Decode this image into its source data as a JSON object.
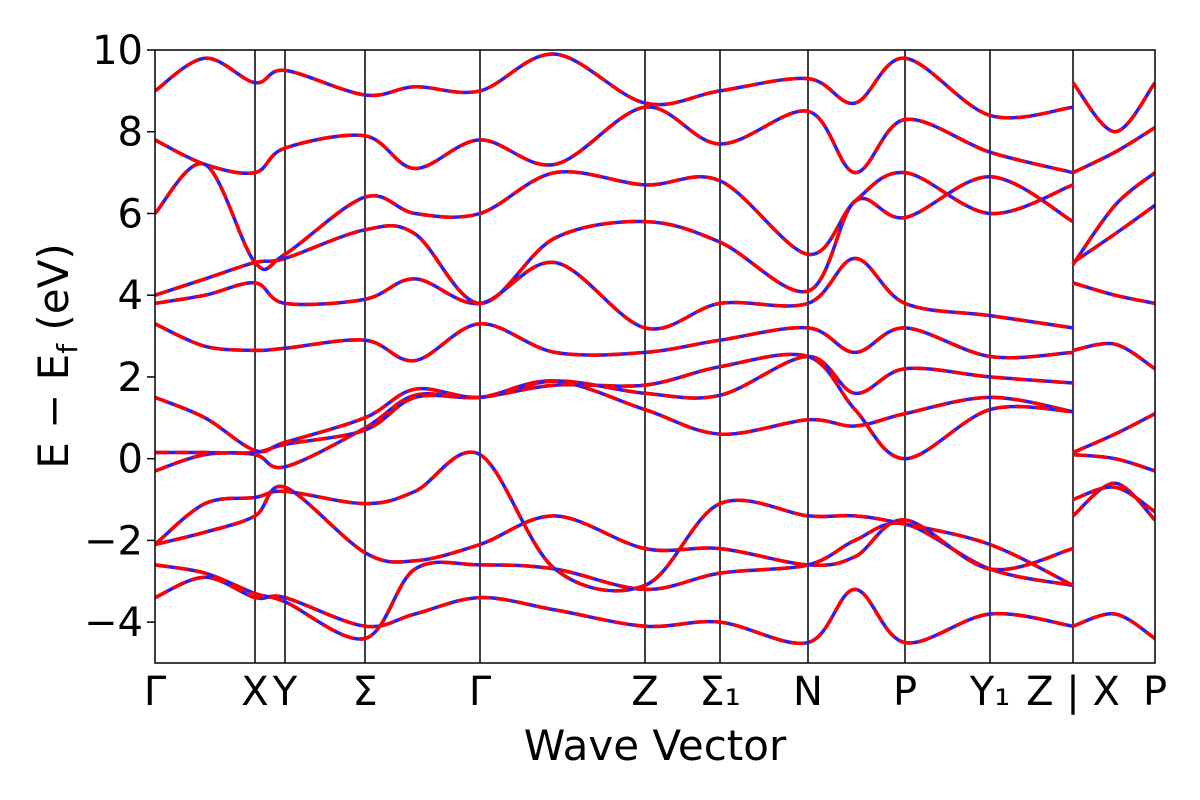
{
  "chart_data": {
    "type": "line",
    "title": "",
    "xlabel": "Wave Vector",
    "ylabel": "E − E_f (eV)",
    "ylabel_main": "E − E",
    "ylabel_sub": "f",
    "ylabel_unit": " (eV)",
    "ylim": [
      -5,
      10
    ],
    "yticks": [
      -4,
      -2,
      0,
      2,
      4,
      6,
      8,
      10
    ],
    "ytick_labels": [
      "−4",
      "−2",
      "0",
      "2",
      "4",
      "6",
      "8",
      "10"
    ],
    "xlim": [
      0,
      10
    ],
    "kpoints": [
      {
        "label": "Γ",
        "x": 0.0
      },
      {
        "label": "X",
        "x": 1.0
      },
      {
        "label": "Y",
        "x": 1.3
      },
      {
        "label": "Σ",
        "x": 2.1
      },
      {
        "label": "Γ",
        "x": 3.25
      },
      {
        "label": "Z",
        "x": 4.9
      },
      {
        "label": "Σ₁",
        "x": 5.65
      },
      {
        "label": "N",
        "x": 6.53
      },
      {
        "label": "P",
        "x": 7.5
      },
      {
        "label": "Y₁",
        "x": 8.35
      },
      {
        "label": "Z | X",
        "x": 9.18
      },
      {
        "label": "P",
        "x": 10.0
      }
    ],
    "band_colors": {
      "dft": "#2020ff",
      "tb": "#ff0000"
    },
    "series": [
      {
        "x": [
          0,
          0.5,
          1.0,
          1.3,
          2.1,
          2.6,
          3.25,
          4.0,
          4.9,
          5.65,
          6.53,
          7.0,
          7.5,
          8.35,
          9.18
        ],
        "values": [
          -3.4,
          -2.9,
          -3.4,
          -3.4,
          -4.1,
          -3.8,
          -3.4,
          -3.7,
          -4.1,
          -4.0,
          -4.5,
          -3.2,
          -4.5,
          -3.8,
          -4.1
        ]
      },
      {
        "x": [
          0,
          0.5,
          1.0,
          1.3,
          2.1,
          2.6,
          3.25,
          4.0,
          4.9,
          5.65,
          6.53,
          7.0,
          7.5,
          8.35,
          9.18
        ],
        "values": [
          -2.6,
          -2.8,
          -3.3,
          -3.5,
          -4.4,
          -2.7,
          -2.6,
          -2.7,
          -3.2,
          -2.8,
          -2.6,
          -2.0,
          -1.6,
          -2.7,
          -3.1
        ]
      },
      {
        "x": [
          0,
          0.5,
          1.0,
          1.3,
          2.1,
          2.6,
          3.25,
          4.0,
          4.9,
          5.65,
          6.53,
          7.0,
          7.5,
          8.35,
          9.18
        ],
        "values": [
          -2.1,
          -1.8,
          -1.4,
          -0.7,
          -2.3,
          -2.5,
          -2.1,
          -1.4,
          -2.2,
          -2.2,
          -2.6,
          -2.4,
          -1.5,
          -2.7,
          -2.2
        ]
      },
      {
        "x": [
          0,
          0.5,
          1.0,
          1.3,
          2.1,
          2.6,
          3.25,
          4.0,
          4.9,
          5.65,
          6.53,
          7.0,
          7.5,
          8.35,
          9.18
        ],
        "values": [
          -2.1,
          -1.1,
          -0.95,
          -0.8,
          -1.1,
          -0.8,
          0.1,
          -2.7,
          -3.1,
          -1.1,
          -1.4,
          -1.4,
          -1.6,
          -2.1,
          -3.1
        ]
      },
      {
        "x": [
          0,
          0.5,
          1.0,
          1.3,
          2.1,
          2.6,
          3.25,
          4.0,
          4.9,
          5.65,
          6.53,
          7.0,
          7.5,
          8.35,
          9.18
        ],
        "values": [
          -0.3,
          0.1,
          0.1,
          -0.2,
          0.75,
          1.55,
          1.5,
          1.9,
          1.2,
          0.6,
          0.95,
          0.8,
          1.1,
          1.5,
          1.15
        ]
      },
      {
        "x": [
          0,
          0.5,
          1.0,
          1.3,
          2.1,
          2.6,
          3.25,
          4.0,
          4.9,
          5.65,
          6.53,
          7.0,
          7.5,
          8.35,
          9.18
        ],
        "values": [
          0.15,
          0.15,
          0.15,
          0.35,
          0.7,
          1.5,
          1.5,
          1.8,
          1.8,
          2.25,
          2.5,
          1.2,
          0.0,
          1.2,
          1.15
        ]
      },
      {
        "x": [
          0,
          0.5,
          1.0,
          1.3,
          2.1,
          2.6,
          3.25,
          4.0,
          4.9,
          5.65,
          6.53,
          7.0,
          7.5,
          8.35,
          9.18
        ],
        "values": [
          1.5,
          1.0,
          0.2,
          0.4,
          1.0,
          1.7,
          1.5,
          1.9,
          1.6,
          1.55,
          2.5,
          1.6,
          2.2,
          2.0,
          1.85
        ]
      },
      {
        "x": [
          0,
          0.5,
          1.0,
          1.3,
          2.1,
          2.6,
          3.25,
          4.0,
          4.9,
          5.65,
          6.53,
          7.0,
          7.5,
          8.35,
          9.18
        ],
        "values": [
          3.3,
          2.75,
          2.65,
          2.7,
          2.9,
          2.4,
          3.3,
          2.6,
          2.6,
          2.9,
          3.2,
          2.6,
          3.2,
          2.5,
          2.6
        ]
      },
      {
        "x": [
          0,
          0.5,
          1.0,
          1.3,
          2.1,
          2.6,
          3.25,
          4.0,
          4.9,
          5.65,
          6.53,
          7.0,
          7.5,
          8.35,
          9.18
        ],
        "values": [
          3.8,
          4.0,
          4.3,
          3.8,
          3.9,
          4.4,
          3.8,
          4.8,
          3.2,
          3.8,
          3.8,
          4.9,
          3.8,
          3.5,
          3.2
        ]
      },
      {
        "x": [
          0,
          0.5,
          1.0,
          1.3,
          2.1,
          2.6,
          3.25,
          4.0,
          4.9,
          5.65,
          6.53,
          7.0,
          7.5,
          8.35,
          9.18
        ],
        "values": [
          4.0,
          4.4,
          4.8,
          4.9,
          5.6,
          5.5,
          3.8,
          5.4,
          5.8,
          5.3,
          4.1,
          6.3,
          5.9,
          6.9,
          5.8
        ]
      },
      {
        "x": [
          0,
          0.5,
          1.0,
          1.3,
          2.1,
          2.6,
          3.25,
          4.0,
          4.9,
          5.65,
          6.53,
          7.0,
          7.5,
          8.35,
          9.18
        ],
        "values": [
          6.0,
          7.2,
          4.8,
          5.0,
          6.4,
          6.0,
          6.0,
          7.0,
          6.7,
          6.8,
          5.0,
          6.3,
          7.0,
          6.0,
          6.7
        ]
      },
      {
        "x": [
          0,
          0.5,
          1.0,
          1.3,
          2.1,
          2.6,
          3.25,
          4.0,
          4.9,
          5.65,
          6.53,
          7.0,
          7.5,
          8.35,
          9.18
        ],
        "values": [
          7.8,
          7.2,
          7.0,
          7.6,
          7.9,
          7.1,
          7.8,
          7.2,
          8.6,
          7.7,
          8.5,
          7.0,
          8.3,
          7.5,
          7.0
        ]
      },
      {
        "x": [
          0,
          0.5,
          1.0,
          1.3,
          2.1,
          2.6,
          3.25,
          4.0,
          4.9,
          5.65,
          6.53,
          7.0,
          7.5,
          8.35,
          9.18
        ],
        "values": [
          9.0,
          9.8,
          9.2,
          9.5,
          8.9,
          9.1,
          9.0,
          9.9,
          8.7,
          9.0,
          9.3,
          8.7,
          9.8,
          8.4,
          8.6
        ]
      }
    ],
    "segment_break_x": 9.18,
    "tail_segment": [
      {
        "x": [
          9.18,
          9.6,
          10.0
        ],
        "values": [
          -4.1,
          -3.8,
          -4.4
        ]
      },
      {
        "x": [
          9.18,
          9.6,
          10.0
        ],
        "values": [
          -1.4,
          -0.6,
          -1.5
        ]
      },
      {
        "x": [
          9.18,
          9.6,
          10.0
        ],
        "values": [
          -1.0,
          -0.7,
          -1.3
        ]
      },
      {
        "x": [
          9.18,
          9.6,
          10.0
        ],
        "values": [
          0.1,
          0.0,
          -0.3
        ]
      },
      {
        "x": [
          9.18,
          9.6,
          10.0
        ],
        "values": [
          0.15,
          0.6,
          1.1
        ]
      },
      {
        "x": [
          9.18,
          9.6,
          10.0
        ],
        "values": [
          2.65,
          2.8,
          2.2
        ]
      },
      {
        "x": [
          9.18,
          9.6,
          10.0
        ],
        "values": [
          4.3,
          4.0,
          3.8
        ]
      },
      {
        "x": [
          9.18,
          9.6,
          10.0
        ],
        "values": [
          4.8,
          5.5,
          6.2
        ]
      },
      {
        "x": [
          9.18,
          9.6,
          10.0
        ],
        "values": [
          4.75,
          6.2,
          7.0
        ]
      },
      {
        "x": [
          9.18,
          9.6,
          10.0
        ],
        "values": [
          7.0,
          7.5,
          8.1
        ]
      },
      {
        "x": [
          9.18,
          9.6,
          10.0
        ],
        "values": [
          9.2,
          8.0,
          9.2
        ]
      }
    ]
  }
}
